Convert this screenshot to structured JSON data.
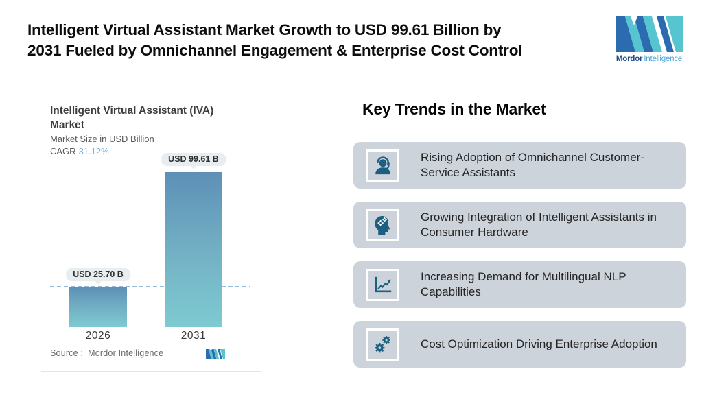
{
  "header": {
    "title_line1": "Intelligent Virtual Assistant Market Growth to USD 99.61 Billion by",
    "title_line2": "2031 Fueled by Omnichannel Engagement & Enterprise Cost Control",
    "brand_name": "Mordor",
    "brand_name2": "Intelligence"
  },
  "chart": {
    "title_line1": "Intelligent Virtual Assistant (IVA)",
    "title_line2": "Market",
    "subtitle": "Market Size in USD Billion",
    "cagr_label": "CAGR",
    "cagr_value": "31.12%",
    "source_label": "Source :",
    "source_value": "Mordor Intelligence"
  },
  "chart_data": {
    "type": "bar",
    "title": "Intelligent Virtual Assistant (IVA) Market",
    "ylabel": "Market Size in USD Billion",
    "categories": [
      "2026",
      "2031"
    ],
    "values": [
      25.7,
      99.61
    ],
    "value_labels": [
      "USD 25.70 B",
      "USD 99.61 B"
    ],
    "cagr": "31.12%",
    "ylim": [
      0,
      110
    ],
    "reference_line": 25.7,
    "grid": false,
    "bar_gradient_top": "#5d90b6",
    "bar_gradient_bottom": "#7ecbd1"
  },
  "trends": {
    "heading": "Key Trends in the Market",
    "items": [
      {
        "icon": "support-agent-icon",
        "text": "Rising Adoption of Omnichannel Customer-Service Assistants"
      },
      {
        "icon": "head-gears-icon",
        "text": "Growing Integration of Intelligent Assistants in Consumer Hardware"
      },
      {
        "icon": "growth-chart-icon",
        "text": "Increasing Demand for Multilingual NLP Capabilities"
      },
      {
        "icon": "gears-icon",
        "text": "Cost Optimization Driving Enterprise Adoption"
      }
    ]
  },
  "colors": {
    "brand_teal": "#56c5d0",
    "brand_blue": "#2b6cb0",
    "icon_teal": "#1d5f80",
    "card_bg": "#cdd3da",
    "label_pill_bg": "#e8edf0",
    "dashed_line": "#93bad9",
    "cagr_value": "#79b2d8"
  }
}
